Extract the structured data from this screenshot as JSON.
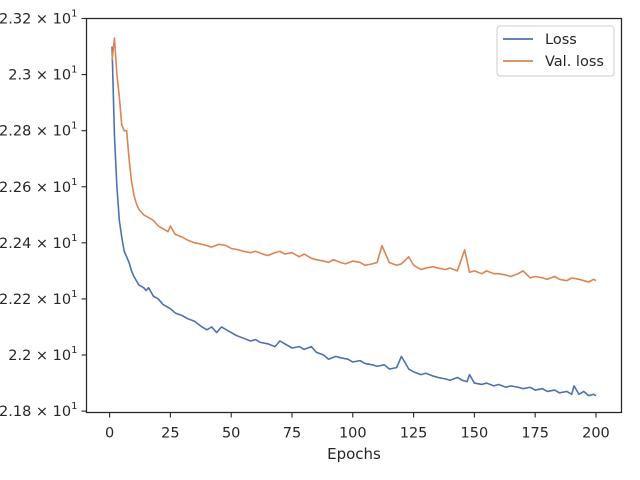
{
  "chart_data": {
    "type": "line",
    "title": "",
    "xlabel": "Epochs",
    "ylabel": "",
    "xlim": [
      -9.5,
      210.5
    ],
    "ylim": [
      21.795,
      23.2
    ],
    "x_ticks": [
      0,
      25,
      50,
      75,
      100,
      125,
      150,
      175,
      200
    ],
    "x_tick_labels": [
      "0",
      "25",
      "50",
      "75",
      "100",
      "125",
      "150",
      "175",
      "200"
    ],
    "y_ticks": [
      21.8,
      22.0,
      22.2,
      22.4,
      22.6,
      22.8,
      23.0,
      23.2
    ],
    "y_tick_mantissas": [
      "2.18",
      "2.2",
      "2.22",
      "2.24",
      "2.26",
      "2.28",
      "2.3",
      "2.32"
    ],
    "y_tick_base": "× 10",
    "y_tick_exponent": "1",
    "grid": false,
    "legend_position": "top-right",
    "series": [
      {
        "name": "Loss",
        "color": "#4c72b0",
        "x": [
          1,
          2,
          3,
          4,
          5,
          6,
          7,
          8,
          9,
          10,
          12,
          14,
          15,
          16,
          18,
          20,
          22,
          24,
          25,
          27,
          30,
          32,
          35,
          38,
          40,
          42,
          44,
          46,
          48,
          50,
          52,
          55,
          58,
          60,
          62,
          65,
          68,
          70,
          72,
          75,
          78,
          80,
          83,
          85,
          88,
          90,
          93,
          95,
          98,
          100,
          103,
          105,
          108,
          110,
          113,
          115,
          118,
          120,
          123,
          125,
          128,
          130,
          133,
          135,
          138,
          140,
          143,
          145,
          147,
          148,
          150,
          153,
          155,
          158,
          160,
          163,
          165,
          168,
          170,
          173,
          175,
          178,
          180,
          183,
          185,
          188,
          190,
          191,
          193,
          195,
          197,
          199,
          200
        ],
        "values": [
          23.1,
          22.78,
          22.6,
          22.48,
          22.42,
          22.37,
          22.35,
          22.33,
          22.3,
          22.28,
          22.25,
          22.24,
          22.23,
          22.24,
          22.21,
          22.2,
          22.18,
          22.17,
          22.165,
          22.15,
          22.14,
          22.13,
          22.12,
          22.1,
          22.09,
          22.1,
          22.08,
          22.1,
          22.09,
          22.08,
          22.07,
          22.06,
          22.05,
          22.055,
          22.045,
          22.04,
          22.03,
          22.05,
          22.04,
          22.025,
          22.03,
          22.02,
          22.03,
          22.01,
          22.0,
          21.985,
          21.995,
          21.99,
          21.985,
          21.975,
          21.98,
          21.97,
          21.965,
          21.96,
          21.965,
          21.95,
          21.955,
          21.995,
          21.95,
          21.94,
          21.93,
          21.935,
          21.925,
          21.92,
          21.915,
          21.91,
          21.92,
          21.91,
          21.905,
          21.93,
          21.9,
          21.895,
          21.9,
          21.89,
          21.895,
          21.885,
          21.89,
          21.885,
          21.88,
          21.885,
          21.875,
          21.88,
          21.87,
          21.875,
          21.865,
          21.87,
          21.86,
          21.89,
          21.86,
          21.87,
          21.855,
          21.86,
          21.855
        ]
      },
      {
        "name": "Val. loss",
        "color": "#dd8452",
        "x": [
          1,
          2,
          3,
          4,
          5,
          6,
          7,
          8,
          9,
          10,
          11,
          12,
          13,
          14,
          16,
          18,
          20,
          22,
          24,
          25,
          27,
          30,
          32,
          35,
          38,
          40,
          42,
          45,
          48,
          50,
          53,
          55,
          58,
          60,
          63,
          65,
          68,
          70,
          72,
          75,
          78,
          80,
          83,
          85,
          88,
          90,
          92,
          95,
          97,
          100,
          103,
          105,
          108,
          110,
          112,
          115,
          118,
          120,
          123,
          125,
          128,
          130,
          133,
          135,
          138,
          140,
          143,
          146,
          148,
          150,
          153,
          155,
          158,
          160,
          163,
          165,
          168,
          170,
          173,
          175,
          178,
          180,
          183,
          185,
          188,
          190,
          193,
          195,
          197,
          199,
          200
        ],
        "values": [
          23.05,
          23.13,
          23.0,
          22.92,
          22.82,
          22.8,
          22.8,
          22.7,
          22.62,
          22.57,
          22.54,
          22.52,
          22.51,
          22.5,
          22.49,
          22.48,
          22.46,
          22.45,
          22.44,
          22.46,
          22.43,
          22.42,
          22.41,
          22.4,
          22.395,
          22.39,
          22.385,
          22.395,
          22.39,
          22.38,
          22.375,
          22.37,
          22.365,
          22.37,
          22.36,
          22.355,
          22.365,
          22.37,
          22.36,
          22.365,
          22.35,
          22.36,
          22.345,
          22.34,
          22.335,
          22.33,
          22.34,
          22.33,
          22.325,
          22.335,
          22.33,
          22.32,
          22.325,
          22.33,
          22.39,
          22.33,
          22.32,
          22.325,
          22.35,
          22.32,
          22.305,
          22.31,
          22.315,
          22.31,
          22.305,
          22.31,
          22.3,
          22.375,
          22.295,
          22.3,
          22.29,
          22.3,
          22.29,
          22.29,
          22.285,
          22.28,
          22.29,
          22.3,
          22.275,
          22.28,
          22.275,
          22.27,
          22.28,
          22.27,
          22.265,
          22.275,
          22.27,
          22.265,
          22.26,
          22.27,
          22.265
        ]
      }
    ]
  }
}
